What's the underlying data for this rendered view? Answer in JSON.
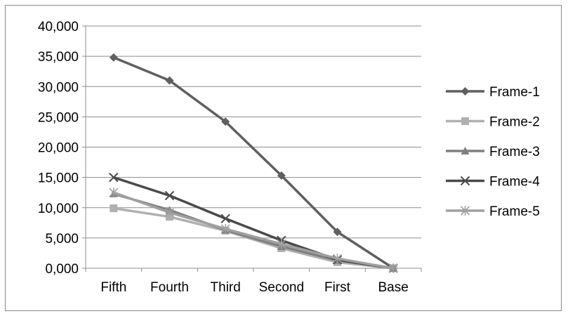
{
  "chart_data": {
    "type": "line",
    "categories": [
      "Fifth",
      "Fourth",
      "Third",
      "Second",
      "First",
      "Base"
    ],
    "ylim": [
      0,
      40000
    ],
    "yticks": [
      0,
      5000,
      10000,
      15000,
      20000,
      25000,
      30000,
      35000,
      40000
    ],
    "ytick_labels": [
      "0,000",
      "5,000",
      "10,000",
      "15,000",
      "20,000",
      "25,000",
      "30,000",
      "35,000",
      "40,000"
    ],
    "grid": true,
    "legend_position": "right",
    "series": [
      {
        "name": "Frame-1",
        "color": "#5f5f5f",
        "marker": "diamond",
        "values": [
          34800,
          31000,
          24200,
          15300,
          6000,
          0
        ]
      },
      {
        "name": "Frame-2",
        "color": "#b0b0b0",
        "marker": "square",
        "values": [
          9900,
          8500,
          6200,
          3300,
          1000,
          0
        ]
      },
      {
        "name": "Frame-3",
        "color": "#808080",
        "marker": "triangle",
        "values": [
          12300,
          9600,
          6300,
          3600,
          1300,
          0
        ]
      },
      {
        "name": "Frame-4",
        "color": "#4a4a4a",
        "marker": "x",
        "values": [
          15000,
          12000,
          8200,
          4600,
          1400,
          0
        ]
      },
      {
        "name": "Frame-5",
        "color": "#a0a0a0",
        "marker": "asterisk",
        "values": [
          12500,
          9200,
          6500,
          4000,
          1600,
          0
        ]
      }
    ]
  }
}
